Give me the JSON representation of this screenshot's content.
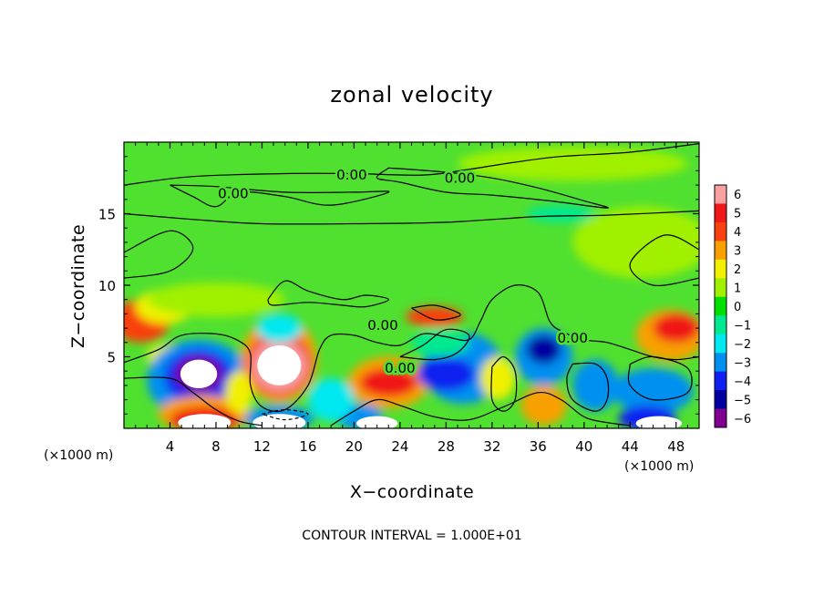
{
  "chart_data": {
    "type": "heatmap",
    "title": "zonal velocity",
    "xlabel": "X−coordinate",
    "ylabel": "Z−coordinate",
    "x_units": "(×1000 m)",
    "y_units": "(×1000 m)",
    "xlim": [
      0,
      50
    ],
    "ylim": [
      0,
      20
    ],
    "x_ticks": [
      4,
      8,
      12,
      16,
      20,
      24,
      28,
      32,
      36,
      40,
      44,
      48
    ],
    "y_ticks": [
      5,
      10,
      15
    ],
    "x_tick_labels": [
      "4",
      "8",
      "12",
      "16",
      "20",
      "24",
      "28",
      "32",
      "36",
      "40",
      "44",
      "48"
    ],
    "y_tick_labels": [
      "5",
      "10",
      "15"
    ],
    "colorbar": {
      "levels": [
        6,
        5,
        4,
        3,
        2,
        1,
        0,
        -1,
        -2,
        -3,
        -4,
        -5,
        -6
      ],
      "labels": [
        "6",
        "5",
        "4",
        "3",
        "2",
        "1",
        "0",
        "−1",
        "−2",
        "−3",
        "−4",
        "−5",
        "−6"
      ],
      "colors": [
        "#f9a0a0",
        "#f01818",
        "#f84010",
        "#f8a000",
        "#f0f000",
        "#a0f000",
        "#00e000",
        "#00e890",
        "#00e8f0",
        "#0090f0",
        "#1020f0",
        "#0000a0",
        "#800090"
      ]
    },
    "background_color": "#50e030",
    "blobs": [
      {
        "x": 1.5,
        "z": 7.5,
        "rx": 2.5,
        "rz": 1.5,
        "level": 4
      },
      {
        "x": 3.5,
        "z": 8.5,
        "rx": 2.5,
        "rz": 1.2,
        "level": 2
      },
      {
        "x": 4.0,
        "z": 5.0,
        "rx": 2.0,
        "rz": 0.9,
        "level": 2
      },
      {
        "x": 6.5,
        "z": 3.4,
        "rx": 4.5,
        "rz": 2.8,
        "level": -3
      },
      {
        "x": 6.5,
        "z": 3.6,
        "rx": 3.0,
        "rz": 1.9,
        "level": -4
      },
      {
        "x": 6.5,
        "z": 3.8,
        "rx": 2.0,
        "rz": 1.2,
        "level": -6
      },
      {
        "x": 7.0,
        "z": 1.0,
        "rx": 4.0,
        "rz": 1.3,
        "level": 3
      },
      {
        "x": 7.0,
        "z": 0.6,
        "rx": 3.0,
        "rz": 0.9,
        "level": 5
      },
      {
        "x": 13.5,
        "z": 4.8,
        "rx": 3.3,
        "rz": 3.0,
        "level": 3
      },
      {
        "x": 13.5,
        "z": 4.5,
        "rx": 2.8,
        "rz": 2.2,
        "level": 5
      },
      {
        "x": 13.5,
        "z": 4.4,
        "rx": 2.4,
        "rz": 1.8,
        "level": 6
      },
      {
        "x": 13.5,
        "z": 7.0,
        "rx": 2.0,
        "rz": 1.0,
        "level": -2
      },
      {
        "x": 13.5,
        "z": 0.7,
        "rx": 3.0,
        "rz": 0.9,
        "level": -3
      },
      {
        "x": 23.0,
        "z": 3.2,
        "rx": 3.5,
        "rz": 1.8,
        "level": 3
      },
      {
        "x": 23.0,
        "z": 3.2,
        "rx": 2.5,
        "rz": 1.0,
        "level": 5
      },
      {
        "x": 29.5,
        "z": 4.2,
        "rx": 3.5,
        "rz": 2.5,
        "level": -3
      },
      {
        "x": 28.0,
        "z": 3.8,
        "rx": 2.5,
        "rz": 1.2,
        "level": -4
      },
      {
        "x": 27.0,
        "z": 7.8,
        "rx": 2.5,
        "rz": 0.7,
        "level": 4
      },
      {
        "x": 27.5,
        "z": 6.0,
        "rx": 2.5,
        "rz": 1.0,
        "level": -1
      },
      {
        "x": 36.5,
        "z": 5.0,
        "rx": 2.5,
        "rz": 2.0,
        "level": -3
      },
      {
        "x": 36.5,
        "z": 5.5,
        "rx": 1.5,
        "rz": 1.0,
        "level": -5
      },
      {
        "x": 36.5,
        "z": 1.6,
        "rx": 2.0,
        "rz": 1.4,
        "level": 3
      },
      {
        "x": 41.0,
        "z": 3.0,
        "rx": 2.0,
        "rz": 1.8,
        "level": -3
      },
      {
        "x": 47.5,
        "z": 6.5,
        "rx": 3.0,
        "rz": 1.8,
        "level": 3
      },
      {
        "x": 48.0,
        "z": 7.0,
        "rx": 2.0,
        "rz": 1.0,
        "level": 5
      },
      {
        "x": 46.0,
        "z": 2.6,
        "rx": 3.5,
        "rz": 1.6,
        "level": -3
      },
      {
        "x": 45.5,
        "z": 0.7,
        "rx": 2.5,
        "rz": 0.9,
        "level": -4
      },
      {
        "x": 20.5,
        "z": 0.8,
        "rx": 2.0,
        "rz": 0.9,
        "level": -3
      },
      {
        "x": 32.5,
        "z": 3.5,
        "rx": 1.5,
        "rz": 1.5,
        "level": 2
      },
      {
        "x": 18.0,
        "z": 2.0,
        "rx": 2.0,
        "rz": 1.5,
        "level": -2
      },
      {
        "x": 10.0,
        "z": 2.5,
        "rx": 1.2,
        "rz": 1.5,
        "level": 2
      },
      {
        "x": 39.0,
        "z": 18.5,
        "rx": 10.0,
        "rz": 1.2,
        "level": 1
      },
      {
        "x": 38.0,
        "z": 15.0,
        "rx": 3.0,
        "rz": 0.6,
        "level": -1
      },
      {
        "x": 45.0,
        "z": 13.0,
        "rx": 6.0,
        "rz": 2.5,
        "level": 1
      },
      {
        "x": 8.0,
        "z": 9.0,
        "rx": 6.0,
        "rz": 1.2,
        "level": 1
      }
    ],
    "white_regions": [
      {
        "x": 6.5,
        "z": 3.8,
        "rx": 1.6,
        "rz": 1.0
      },
      {
        "x": 13.5,
        "z": 4.4,
        "rx": 1.9,
        "rz": 1.4
      },
      {
        "x": 7.0,
        "z": 0.4,
        "rx": 2.3,
        "rz": 0.6
      },
      {
        "x": 13.5,
        "z": 0.4,
        "rx": 2.3,
        "rz": 0.6
      },
      {
        "x": 22.0,
        "z": 0.35,
        "rx": 1.8,
        "rz": 0.5
      },
      {
        "x": 46.5,
        "z": 0.35,
        "rx": 2.0,
        "rz": 0.5
      }
    ],
    "contours": [
      {
        "level": 0,
        "points": [
          [
            0,
            17.0
          ],
          [
            6,
            17.6
          ],
          [
            14,
            17.8
          ],
          [
            20,
            17.8
          ],
          [
            26,
            17.7
          ],
          [
            30,
            18.1
          ],
          [
            34,
            18.6
          ],
          [
            38,
            19.0
          ],
          [
            44,
            19.3
          ],
          [
            50,
            19.9
          ]
        ]
      },
      {
        "level": 0,
        "points": [
          [
            23,
            18.2
          ],
          [
            28,
            17.9
          ],
          [
            32,
            17.5
          ],
          [
            36,
            16.8
          ],
          [
            40,
            15.9
          ],
          [
            42,
            15.4
          ],
          [
            37,
            15.9
          ],
          [
            32,
            16.3
          ],
          [
            28,
            16.5
          ],
          [
            24,
            17.2
          ],
          [
            22,
            17.5
          ],
          [
            23,
            18.2
          ]
        ]
      },
      {
        "level": 0,
        "points": [
          [
            4,
            17.0
          ],
          [
            8,
            16.9
          ],
          [
            14,
            16.5
          ],
          [
            20,
            16.5
          ],
          [
            23,
            16.5
          ],
          [
            18,
            15.6
          ],
          [
            14,
            16.2
          ],
          [
            10,
            16.5
          ],
          [
            8,
            15.5
          ],
          [
            6,
            16.2
          ],
          [
            4,
            17.0
          ]
        ]
      },
      {
        "level": 0,
        "points": [
          [
            0,
            15.0
          ],
          [
            6,
            14.6
          ],
          [
            12,
            14.3
          ],
          [
            20,
            14.3
          ],
          [
            28,
            14.4
          ],
          [
            36,
            14.8
          ],
          [
            42,
            14.9
          ],
          [
            50,
            15.2
          ]
        ]
      },
      {
        "level": 0,
        "points": [
          [
            0,
            12.3
          ],
          [
            4,
            13.8
          ],
          [
            6,
            12.6
          ],
          [
            4,
            11.0
          ],
          [
            0,
            10.5
          ]
        ]
      },
      {
        "level": 0,
        "points": [
          [
            50,
            12.5
          ],
          [
            47,
            13.5
          ],
          [
            44,
            11.5
          ],
          [
            46,
            10.0
          ],
          [
            50,
            10.5
          ]
        ]
      },
      {
        "level": 0,
        "points": [
          [
            12.5,
            9.0
          ],
          [
            14,
            10.3
          ],
          [
            16,
            9.6
          ],
          [
            19,
            9.0
          ],
          [
            21,
            9.3
          ],
          [
            23,
            9.0
          ],
          [
            21,
            8.5
          ],
          [
            19,
            8.6
          ],
          [
            16,
            8.8
          ],
          [
            13,
            8.6
          ],
          [
            12.5,
            9.0
          ]
        ]
      },
      {
        "level": 0,
        "points": [
          [
            0,
            4.6
          ],
          [
            3,
            5.5
          ],
          [
            5,
            6.5
          ],
          [
            8,
            6.6
          ],
          [
            10,
            6.1
          ],
          [
            11,
            5.2
          ],
          [
            11,
            3.0
          ],
          [
            12,
            1.5
          ],
          [
            14,
            1.3
          ],
          [
            16,
            3.0
          ],
          [
            17,
            5.5
          ],
          [
            18,
            6.5
          ],
          [
            20,
            6.5
          ],
          [
            22,
            6.0
          ],
          [
            24,
            5.8
          ],
          [
            26,
            6.6
          ],
          [
            28,
            6.4
          ],
          [
            30,
            6.2
          ],
          [
            31,
            7.5
          ],
          [
            32,
            9.0
          ],
          [
            34,
            10.0
          ],
          [
            36,
            9.5
          ],
          [
            37,
            7.5
          ],
          [
            38,
            6.8
          ],
          [
            40,
            6.2
          ],
          [
            42,
            6.0
          ],
          [
            44,
            5.5
          ],
          [
            46,
            5.0
          ],
          [
            48,
            4.8
          ],
          [
            50,
            5.0
          ]
        ]
      },
      {
        "level": 0,
        "points": [
          [
            0,
            3.5
          ],
          [
            4,
            3.5
          ],
          [
            6,
            2.5
          ],
          [
            8,
            1.3
          ],
          [
            10,
            0.5
          ],
          [
            12,
            0.2
          ]
        ]
      },
      {
        "level": 0,
        "points": [
          [
            18,
            0.2
          ],
          [
            20,
            1.2
          ],
          [
            22,
            2.0
          ],
          [
            24,
            1.6
          ],
          [
            27,
            0.8
          ],
          [
            30,
            0.6
          ],
          [
            33,
            1.5
          ],
          [
            36,
            2.5
          ],
          [
            38,
            2.0
          ],
          [
            40,
            0.8
          ],
          [
            42,
            0.4
          ],
          [
            44,
            0.2
          ]
        ]
      },
      {
        "level": 0,
        "points": [
          [
            24,
            5.0
          ],
          [
            26,
            5.8
          ],
          [
            28,
            6.9
          ],
          [
            30,
            6.5
          ],
          [
            29,
            5.3
          ],
          [
            27,
            4.8
          ],
          [
            24,
            5.0
          ]
        ]
      },
      {
        "level": 0,
        "points": [
          [
            32,
            4.3
          ],
          [
            33,
            5.0
          ],
          [
            34,
            4.0
          ],
          [
            34,
            2.0
          ],
          [
            33,
            1.2
          ],
          [
            32,
            2.0
          ],
          [
            32,
            4.3
          ]
        ]
      },
      {
        "level": 0,
        "points": [
          [
            39,
            4.5
          ],
          [
            41,
            4.5
          ],
          [
            42,
            3.5
          ],
          [
            42,
            2.0
          ],
          [
            41,
            1.2
          ],
          [
            39,
            2.0
          ],
          [
            38.5,
            3.5
          ],
          [
            39,
            4.5
          ]
        ]
      },
      {
        "level": 0,
        "points": [
          [
            44,
            4.5
          ],
          [
            46,
            5.0
          ],
          [
            49,
            4.2
          ],
          [
            49,
            2.5
          ],
          [
            46,
            2.0
          ],
          [
            44,
            3.0
          ],
          [
            44,
            4.5
          ]
        ]
      },
      {
        "level": 0,
        "points": [
          [
            25,
            8.4
          ],
          [
            27,
            8.6
          ],
          [
            29,
            8.1
          ],
          [
            29,
            7.8
          ],
          [
            27,
            7.6
          ],
          [
            25,
            8.4
          ]
        ]
      },
      {
        "level": -10,
        "points": [
          [
            12,
            1.0
          ],
          [
            14,
            1.3
          ],
          [
            16,
            1.0
          ],
          [
            14,
            0.6
          ],
          [
            12,
            1.0
          ]
        ]
      }
    ],
    "contour_labels": [
      {
        "text": "0.00",
        "x": 19.8,
        "z": 17.7
      },
      {
        "text": "0.00",
        "x": 29.2,
        "z": 17.5
      },
      {
        "text": "0.00",
        "x": 9.5,
        "z": 16.4
      },
      {
        "text": "0.00",
        "x": 22.5,
        "z": 7.2
      },
      {
        "text": "0.00",
        "x": 24.0,
        "z": 4.2
      },
      {
        "text": "0.00",
        "x": 39.0,
        "z": 6.3
      }
    ],
    "note": "CONTOUR INTERVAL = 1.000E+01"
  }
}
